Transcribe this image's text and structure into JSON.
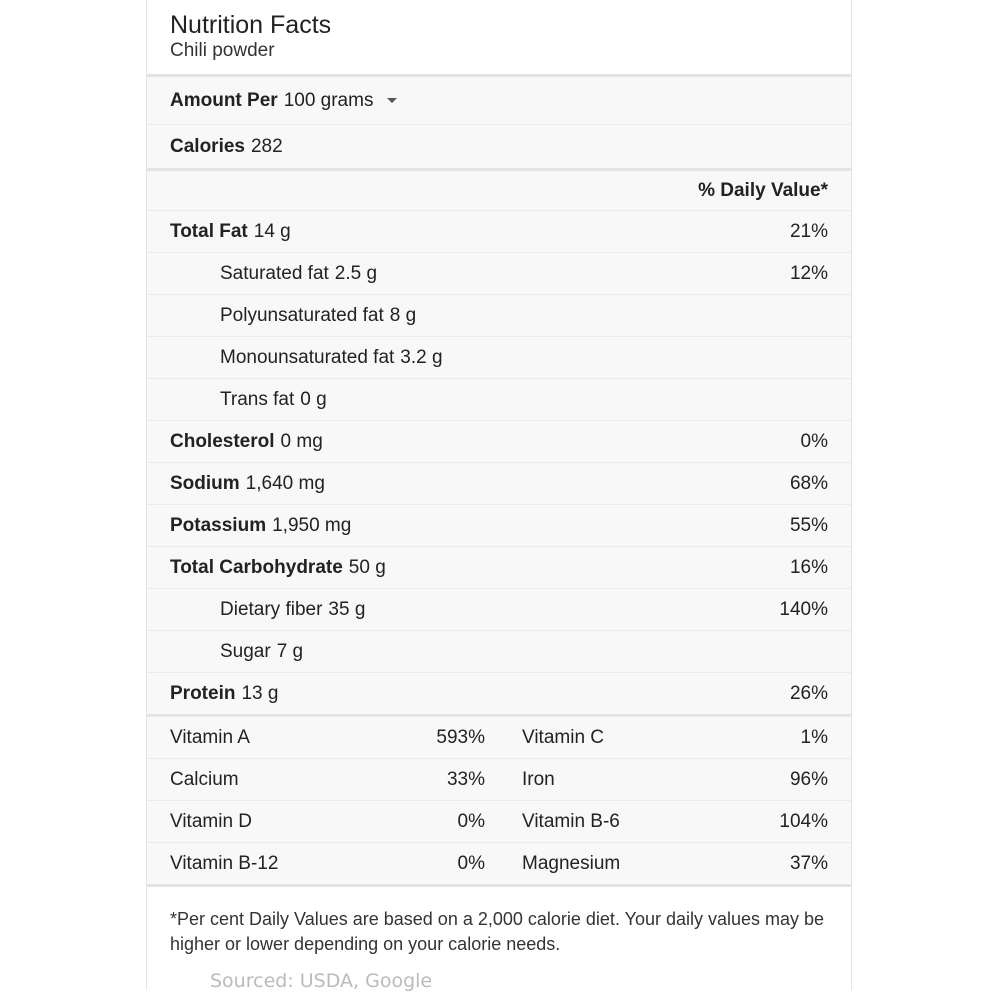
{
  "header": {
    "title": "Nutrition Facts",
    "subtitle": "Chili powder"
  },
  "amount": {
    "label": "Amount Per",
    "value": "100 grams"
  },
  "calories": {
    "label": "Calories",
    "value": "282"
  },
  "dv_header": "% Daily Value*",
  "nutrients": [
    {
      "label": "Total Fat",
      "value": "14 g",
      "dv": "21%",
      "bold": true
    },
    {
      "label": "Saturated fat",
      "value": "2.5 g",
      "dv": "12%",
      "bold": false
    },
    {
      "label": "Polyunsaturated fat",
      "value": "8 g",
      "dv": "",
      "bold": false
    },
    {
      "label": "Monounsaturated fat",
      "value": "3.2 g",
      "dv": "",
      "bold": false
    },
    {
      "label": "Trans fat",
      "value": "0 g",
      "dv": "",
      "bold": false
    },
    {
      "label": "Cholesterol",
      "value": "0 mg",
      "dv": "0%",
      "bold": true
    },
    {
      "label": "Sodium",
      "value": "1,640 mg",
      "dv": "68%",
      "bold": true
    },
    {
      "label": "Potassium",
      "value": "1,950 mg",
      "dv": "55%",
      "bold": true
    },
    {
      "label": "Total Carbohydrate",
      "value": "50 g",
      "dv": "16%",
      "bold": true
    },
    {
      "label": "Dietary fiber",
      "value": "35 g",
      "dv": "140%",
      "bold": false
    },
    {
      "label": "Sugar",
      "value": "7 g",
      "dv": "",
      "bold": false
    },
    {
      "label": "Protein",
      "value": "13 g",
      "dv": "26%",
      "bold": true
    }
  ],
  "vitamins": [
    [
      {
        "label": "Vitamin A",
        "dv": "593%"
      },
      {
        "label": "Vitamin C",
        "dv": "1%"
      }
    ],
    [
      {
        "label": "Calcium",
        "dv": "33%"
      },
      {
        "label": "Iron",
        "dv": "96%"
      }
    ],
    [
      {
        "label": "Vitamin D",
        "dv": "0%"
      },
      {
        "label": "Vitamin B-6",
        "dv": "104%"
      }
    ],
    [
      {
        "label": "Vitamin B-12",
        "dv": "0%"
      },
      {
        "label": "Magnesium",
        "dv": "37%"
      }
    ]
  ],
  "footnote": "*Per cent Daily Values are based on a 2,000 calorie diet. Your daily values may be higher or lower depending on your calorie needs.",
  "source": "Sourced: USDA, Google"
}
